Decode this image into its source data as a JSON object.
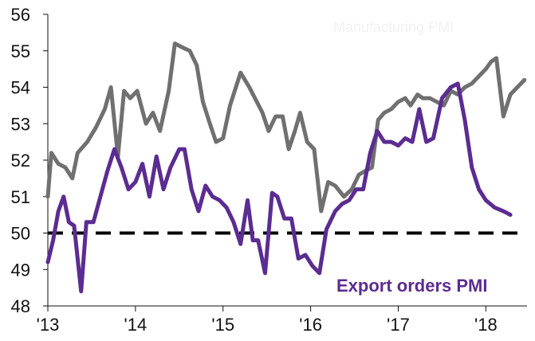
{
  "chart_data": {
    "type": "line",
    "title": "",
    "xlabel": "",
    "ylabel": "",
    "ylim": [
      48,
      56
    ],
    "y_ticks": [
      "48",
      "49",
      "50",
      "51",
      "52",
      "53",
      "54",
      "55",
      "56"
    ],
    "x_ticks": [
      "'13",
      "'14",
      "'15",
      "'16",
      "'17",
      "'18"
    ],
    "grid": false,
    "legend": "none",
    "annotations": [
      {
        "text": "Manufacturing PMI",
        "color": "#f2f2f2"
      },
      {
        "text": "Export orders  PMI",
        "color": "#5b2c91"
      }
    ],
    "reference_line": {
      "y": 50,
      "style": "dashed",
      "color": "#000000"
    },
    "series": [
      {
        "color": "#707070",
        "points": [
          [
            2013.0,
            51.0
          ],
          [
            2013.04,
            52.2
          ],
          [
            2013.12,
            51.9
          ],
          [
            2013.2,
            51.8
          ],
          [
            2013.28,
            51.5
          ],
          [
            2013.34,
            52.2
          ],
          [
            2013.45,
            52.5
          ],
          [
            2013.55,
            52.9
          ],
          [
            2013.65,
            53.4
          ],
          [
            2013.72,
            54.0
          ],
          [
            2013.8,
            52.1
          ],
          [
            2013.87,
            53.9
          ],
          [
            2013.94,
            53.7
          ],
          [
            2014.02,
            53.9
          ],
          [
            2014.12,
            53.0
          ],
          [
            2014.2,
            53.3
          ],
          [
            2014.28,
            52.8
          ],
          [
            2014.38,
            53.9
          ],
          [
            2014.45,
            55.2
          ],
          [
            2014.53,
            55.1
          ],
          [
            2014.62,
            55.0
          ],
          [
            2014.7,
            54.6
          ],
          [
            2014.77,
            53.6
          ],
          [
            2014.85,
            53.0
          ],
          [
            2014.92,
            52.5
          ],
          [
            2015.0,
            52.6
          ],
          [
            2015.08,
            53.5
          ],
          [
            2015.2,
            54.4
          ],
          [
            2015.3,
            54.0
          ],
          [
            2015.45,
            53.3
          ],
          [
            2015.52,
            52.8
          ],
          [
            2015.6,
            53.2
          ],
          [
            2015.68,
            53.2
          ],
          [
            2015.75,
            52.3
          ],
          [
            2015.82,
            52.8
          ],
          [
            2015.88,
            53.3
          ],
          [
            2015.96,
            52.5
          ],
          [
            2016.04,
            52.3
          ],
          [
            2016.12,
            50.6
          ],
          [
            2016.2,
            51.4
          ],
          [
            2016.28,
            51.3
          ],
          [
            2016.38,
            51.0
          ],
          [
            2016.47,
            51.2
          ],
          [
            2016.55,
            51.6
          ],
          [
            2016.62,
            51.7
          ],
          [
            2016.7,
            51.8
          ],
          [
            2016.77,
            53.1
          ],
          [
            2016.84,
            53.3
          ],
          [
            2016.92,
            53.4
          ],
          [
            2017.0,
            53.6
          ],
          [
            2017.08,
            53.7
          ],
          [
            2017.14,
            53.5
          ],
          [
            2017.22,
            53.8
          ],
          [
            2017.28,
            53.7
          ],
          [
            2017.36,
            53.7
          ],
          [
            2017.44,
            53.6
          ],
          [
            2017.52,
            53.5
          ],
          [
            2017.6,
            53.9
          ],
          [
            2017.68,
            53.8
          ],
          [
            2017.76,
            54.0
          ],
          [
            2017.84,
            54.1
          ],
          [
            2017.92,
            54.3
          ],
          [
            2018.0,
            54.5
          ],
          [
            2018.06,
            54.7
          ],
          [
            2018.12,
            54.8
          ],
          [
            2018.2,
            53.2
          ],
          [
            2018.28,
            53.8
          ],
          [
            2018.36,
            54.0
          ],
          [
            2018.44,
            54.2
          ]
        ]
      },
      {
        "color": "#5b2c91",
        "points": [
          [
            2013.0,
            49.2
          ],
          [
            2013.06,
            49.8
          ],
          [
            2013.12,
            50.6
          ],
          [
            2013.18,
            51.0
          ],
          [
            2013.24,
            50.3
          ],
          [
            2013.3,
            50.2
          ],
          [
            2013.38,
            48.4
          ],
          [
            2013.44,
            50.3
          ],
          [
            2013.52,
            50.3
          ],
          [
            2013.6,
            51.0
          ],
          [
            2013.68,
            51.7
          ],
          [
            2013.76,
            52.3
          ],
          [
            2013.84,
            51.8
          ],
          [
            2013.92,
            51.2
          ],
          [
            2014.0,
            51.4
          ],
          [
            2014.08,
            51.9
          ],
          [
            2014.16,
            51.0
          ],
          [
            2014.24,
            52.1
          ],
          [
            2014.32,
            51.2
          ],
          [
            2014.4,
            51.8
          ],
          [
            2014.5,
            52.3
          ],
          [
            2014.56,
            52.3
          ],
          [
            2014.64,
            51.2
          ],
          [
            2014.72,
            50.6
          ],
          [
            2014.8,
            51.3
          ],
          [
            2014.88,
            51.0
          ],
          [
            2014.96,
            50.9
          ],
          [
            2015.04,
            50.7
          ],
          [
            2015.12,
            50.3
          ],
          [
            2015.2,
            49.7
          ],
          [
            2015.28,
            50.9
          ],
          [
            2015.34,
            49.8
          ],
          [
            2015.4,
            49.8
          ],
          [
            2015.48,
            48.9
          ],
          [
            2015.56,
            51.1
          ],
          [
            2015.62,
            51.0
          ],
          [
            2015.7,
            50.4
          ],
          [
            2015.78,
            50.4
          ],
          [
            2015.86,
            49.3
          ],
          [
            2015.94,
            49.4
          ],
          [
            2016.02,
            49.1
          ],
          [
            2016.1,
            48.9
          ],
          [
            2016.18,
            50.1
          ],
          [
            2016.28,
            50.6
          ],
          [
            2016.36,
            50.8
          ],
          [
            2016.44,
            50.9
          ],
          [
            2016.52,
            51.2
          ],
          [
            2016.6,
            51.2
          ],
          [
            2016.68,
            52.2
          ],
          [
            2016.76,
            52.8
          ],
          [
            2016.84,
            52.5
          ],
          [
            2016.92,
            52.5
          ],
          [
            2017.0,
            52.4
          ],
          [
            2017.08,
            52.6
          ],
          [
            2017.16,
            52.5
          ],
          [
            2017.24,
            53.4
          ],
          [
            2017.32,
            52.5
          ],
          [
            2017.4,
            52.6
          ],
          [
            2017.5,
            53.7
          ],
          [
            2017.6,
            54.0
          ],
          [
            2017.68,
            54.1
          ],
          [
            2017.76,
            53.1
          ],
          [
            2017.84,
            51.8
          ],
          [
            2017.92,
            51.2
          ],
          [
            2018.0,
            50.9
          ],
          [
            2018.1,
            50.7
          ],
          [
            2018.2,
            50.6
          ],
          [
            2018.28,
            50.5
          ]
        ]
      }
    ]
  }
}
